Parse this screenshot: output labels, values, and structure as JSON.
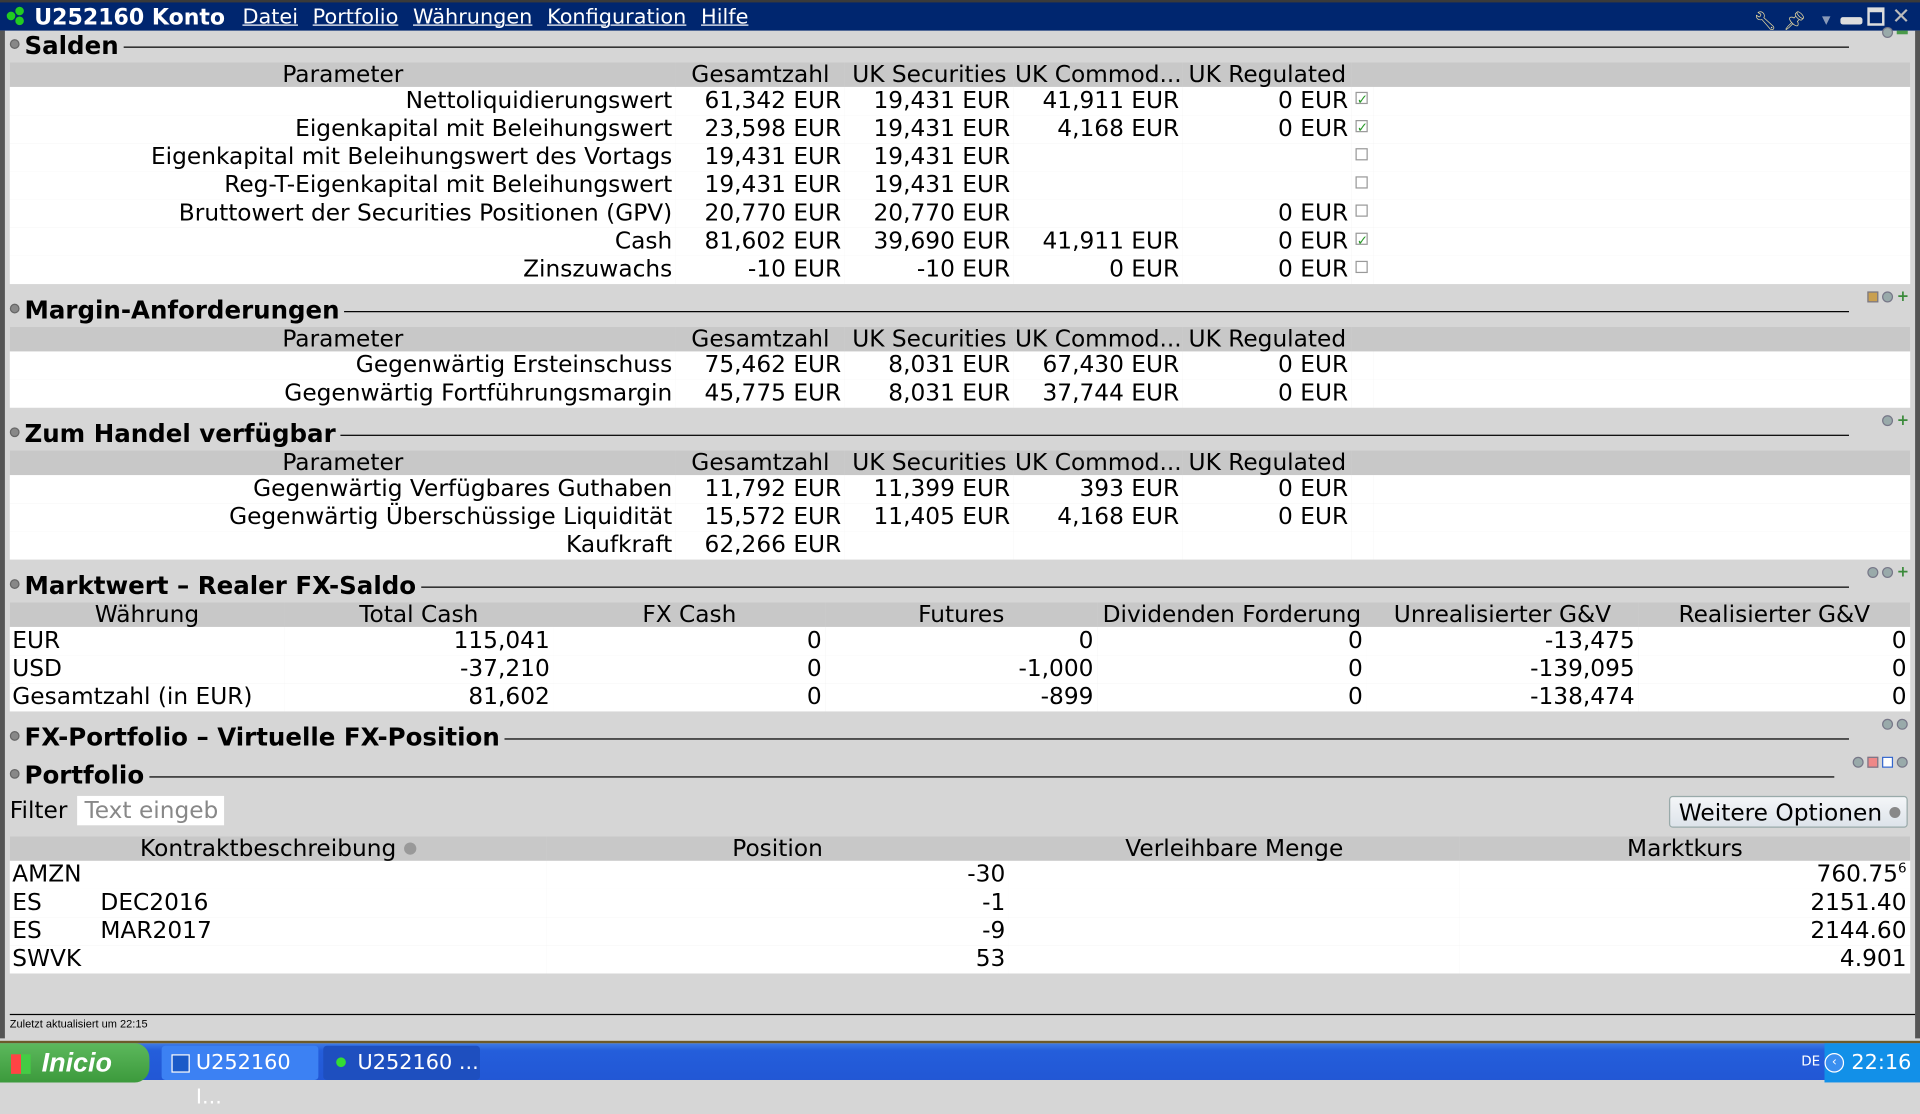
{
  "window": {
    "title": "U252160 Konto",
    "menu": [
      "Datei",
      "Portfolio",
      "Währungen",
      "Konfiguration",
      "Hilfe"
    ]
  },
  "param_headers": [
    "Parameter",
    "Gesamtzahl",
    "UK Securities",
    "UK Commod...",
    "UK Regulated"
  ],
  "salden": {
    "title": "Salden",
    "rows": [
      {
        "cells": [
          "Nettoliquidierungswert",
          "61,342 EUR",
          "19,431 EUR",
          "41,911 EUR",
          "0 EUR"
        ],
        "checked": true
      },
      {
        "cells": [
          "Eigenkapital mit Beleihungswert",
          "23,598 EUR",
          "19,431 EUR",
          "4,168 EUR",
          "0 EUR"
        ],
        "checked": true
      },
      {
        "cells": [
          "Eigenkapital mit Beleihungswert des Vortags",
          "19,431 EUR",
          "19,431 EUR",
          "",
          ""
        ],
        "checked": false
      },
      {
        "cells": [
          "Reg-T-Eigenkapital mit Beleihungswert",
          "19,431 EUR",
          "19,431 EUR",
          "",
          ""
        ],
        "checked": false
      },
      {
        "cells": [
          "Bruttowert der Securities Positionen (GPV)",
          "20,770 EUR",
          "20,770 EUR",
          "",
          "0 EUR"
        ],
        "checked": false
      },
      {
        "cells": [
          "Cash",
          "81,602 EUR",
          "39,690 EUR",
          "41,911 EUR",
          "0 EUR"
        ],
        "checked": true
      },
      {
        "cells": [
          "Zinszuwachs",
          "-10 EUR",
          "-10 EUR",
          "0 EUR",
          "0 EUR"
        ],
        "checked": false
      }
    ]
  },
  "margin": {
    "title": "Margin-Anforderungen",
    "rows": [
      {
        "cells": [
          "Gegenwärtig Ersteinschuss",
          "75,462 EUR",
          "8,031 EUR",
          "67,430 EUR",
          "0 EUR"
        ]
      },
      {
        "cells": [
          "Gegenwärtig Fortführungsmargin",
          "45,775 EUR",
          "8,031 EUR",
          "37,744 EUR",
          "0 EUR"
        ]
      }
    ]
  },
  "handel": {
    "title": "Zum Handel verfügbar",
    "rows": [
      {
        "cells": [
          "Gegenwärtig Verfügbares Guthaben",
          "11,792 EUR",
          "11,399 EUR",
          "393 EUR",
          "0 EUR"
        ]
      },
      {
        "cells": [
          "Gegenwärtig Überschüssige Liquidität",
          "15,572 EUR",
          "11,405 EUR",
          "4,168 EUR",
          "0 EUR"
        ]
      },
      {
        "cells": [
          "Kaufkraft",
          "62,266 EUR",
          "",
          "",
          ""
        ]
      }
    ]
  },
  "marktwert": {
    "title": "Marktwert – Realer FX-Saldo",
    "headers": [
      "Währung",
      "Total Cash",
      "FX Cash",
      "Futures",
      "Dividenden Forderung",
      "Unrealisierter G&V",
      "Realisierter G&V"
    ],
    "rows": [
      {
        "cells": [
          "EUR",
          "115,041",
          "0",
          "0",
          "0",
          "-13,475",
          "0"
        ]
      },
      {
        "cells": [
          "USD",
          "-37,210",
          "0",
          "-1,000",
          "0",
          "-139,095",
          "0"
        ]
      },
      {
        "cells": [
          "Gesamtzahl (in EUR)",
          "81,602",
          "0",
          "-899",
          "0",
          "-138,474",
          "0"
        ]
      }
    ]
  },
  "fx_portfolio": {
    "title": "FX-Portfolio – Virtuelle FX-Position"
  },
  "portfolio": {
    "title": "Portfolio",
    "filter_label": "Filter",
    "filter_placeholder": "Text eingeb",
    "more_options": "Weitere Optionen",
    "headers": [
      "Kontraktbeschreibung",
      "Position",
      "Verleihbare Menge",
      "Marktkurs"
    ],
    "rows": [
      {
        "symbol": "AMZN",
        "expiry": "",
        "position": "-30",
        "lendable": "",
        "price": "760.75",
        "price_sup": "6"
      },
      {
        "symbol": "ES",
        "expiry": "DEC2016",
        "position": "-1",
        "lendable": "",
        "price": "2151.40",
        "price_sup": ""
      },
      {
        "symbol": "ES",
        "expiry": "MAR2017",
        "position": "-9",
        "lendable": "",
        "price": "2144.60",
        "price_sup": ""
      },
      {
        "symbol": "SWVK",
        "expiry": "",
        "position": "53",
        "lendable": "",
        "price": "4.901",
        "price_sup": ""
      }
    ]
  },
  "status": "Zuletzt aktualisiert um 22:15",
  "taskbar": {
    "start": "Inicio",
    "tasks": [
      "U252160 I...",
      "U252160 ..."
    ],
    "lang": "DE",
    "clock": "22:16"
  }
}
